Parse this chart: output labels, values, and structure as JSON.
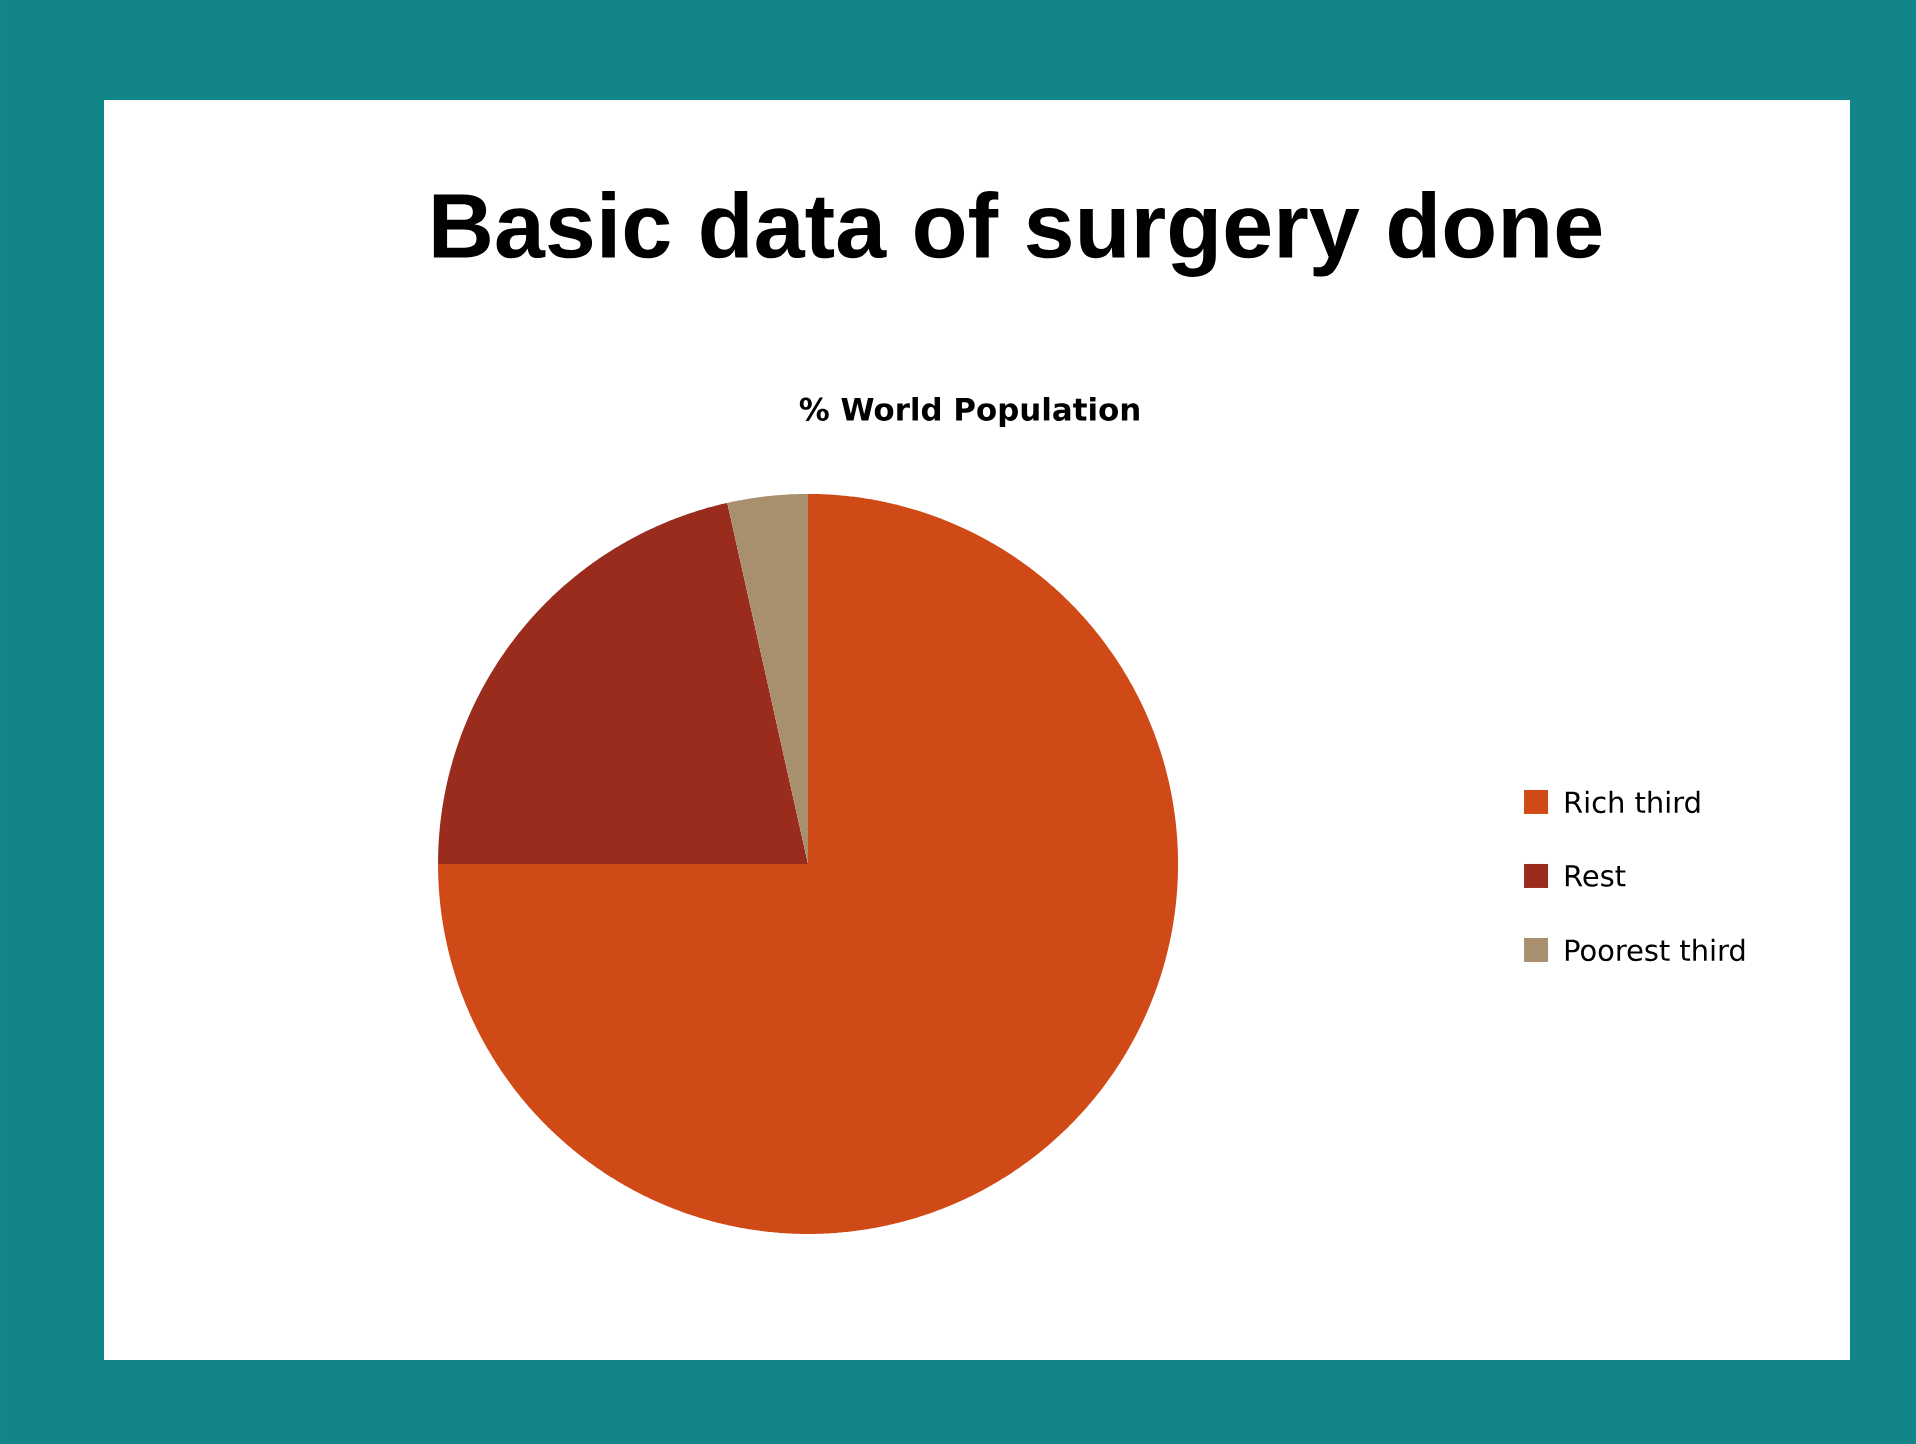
{
  "chart_data": {
    "type": "pie",
    "title": "Basic data of surgery done",
    "subtitle": "% World Population",
    "categories": [
      "Rich third",
      "Rest",
      "Poorest third"
    ],
    "values": [
      75,
      21.5,
      3.5
    ],
    "colors": [
      "#d04a18",
      "#9a2c1e",
      "#a8906e"
    ],
    "legend": "right"
  }
}
